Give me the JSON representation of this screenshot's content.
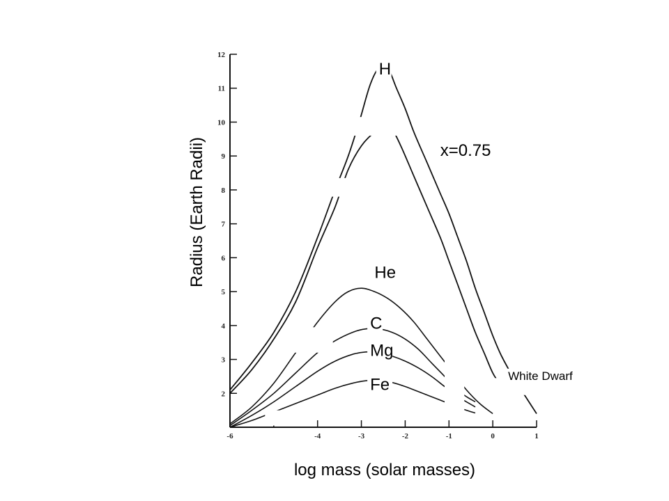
{
  "chart_data": {
    "type": "line",
    "title": "",
    "xlabel": "log mass (solar masses)",
    "ylabel": "Radius (Earth Radii)",
    "xlim": [
      -6,
      1
    ],
    "ylim": [
      1,
      12
    ],
    "xticks": [
      -6,
      -5,
      -4,
      -3,
      -2,
      -1,
      0,
      1
    ],
    "xtick_labels": [
      "-6",
      "",
      "-4",
      "-3",
      "-2",
      "-1",
      "0",
      "1"
    ],
    "yticks": [
      2,
      3,
      4,
      5,
      6,
      7,
      8,
      9,
      10,
      11,
      12
    ],
    "grid": false,
    "series": [
      {
        "name": "H",
        "label_at": [
          -2.6,
          11.4
        ],
        "x": [
          -6.0,
          -5.5,
          -5.0,
          -4.5,
          -4.0,
          -3.6,
          -3.3,
          -3.05,
          -2.8,
          -2.6,
          -2.4,
          -2.2,
          -2.0,
          -1.8,
          -1.5,
          -1.2,
          -1.0,
          -0.8,
          -0.6,
          -0.4,
          -0.2,
          0.0,
          0.2,
          0.5,
          0.8,
          1.0
        ],
        "y": [
          2.1,
          2.9,
          3.8,
          5.0,
          6.6,
          8.0,
          9.0,
          10.0,
          11.1,
          11.6,
          11.6,
          11.0,
          10.4,
          9.7,
          8.8,
          7.9,
          7.3,
          6.6,
          5.9,
          5.1,
          4.4,
          3.7,
          3.1,
          2.4,
          1.8,
          1.4
        ]
      },
      {
        "name": "x=0.75",
        "label_at": [
          -1.2,
          9.0
        ],
        "x": [
          -6.0,
          -5.5,
          -5.0,
          -4.5,
          -4.0,
          -3.6,
          -3.3,
          -3.0,
          -2.7,
          -2.45,
          -2.3,
          -2.1,
          -1.8,
          -1.5,
          -1.2,
          -1.0,
          -0.8,
          -0.6,
          -0.4,
          -0.2,
          0.0,
          0.2
        ],
        "y": [
          2.0,
          2.7,
          3.6,
          4.7,
          6.3,
          7.5,
          8.6,
          9.3,
          9.7,
          9.9,
          9.8,
          9.3,
          8.4,
          7.5,
          6.6,
          5.9,
          5.2,
          4.5,
          3.8,
          3.2,
          2.6,
          2.2
        ]
      },
      {
        "name": "He",
        "label_at": [
          -2.7,
          5.4
        ],
        "x": [
          -6.0,
          -5.5,
          -5.0,
          -4.5,
          -4.0,
          -3.6,
          -3.3,
          -3.0,
          -2.7,
          -2.4,
          -2.1,
          -1.8,
          -1.5,
          -1.2,
          -0.9,
          -0.6,
          -0.3,
          0.0
        ],
        "y": [
          1.1,
          1.6,
          2.3,
          3.2,
          4.1,
          4.7,
          5.0,
          5.1,
          5.0,
          4.8,
          4.5,
          4.1,
          3.6,
          3.1,
          2.6,
          2.1,
          1.7,
          1.4
        ]
      },
      {
        "name": "C",
        "label_at": [
          -2.8,
          3.9
        ],
        "x": [
          -6.0,
          -5.5,
          -5.0,
          -4.5,
          -4.0,
          -3.6,
          -3.2,
          -2.9,
          -2.6,
          -2.3,
          -2.0,
          -1.7,
          -1.4,
          -1.1,
          -0.8,
          -0.6,
          -0.4
        ],
        "y": [
          1.05,
          1.5,
          2.0,
          2.6,
          3.2,
          3.55,
          3.8,
          3.9,
          3.9,
          3.8,
          3.6,
          3.3,
          2.9,
          2.5,
          2.1,
          1.9,
          1.75
        ]
      },
      {
        "name": "Mg",
        "label_at": [
          -2.8,
          3.1
        ],
        "x": [
          -6.0,
          -5.5,
          -5.0,
          -4.5,
          -4.0,
          -3.6,
          -3.2,
          -2.9,
          -2.6,
          -2.3,
          -2.0,
          -1.7,
          -1.4,
          -1.1,
          -0.8,
          -0.6,
          -0.4
        ],
        "y": [
          1.0,
          1.35,
          1.75,
          2.2,
          2.65,
          2.95,
          3.15,
          3.22,
          3.2,
          3.1,
          2.95,
          2.75,
          2.5,
          2.2,
          1.9,
          1.75,
          1.6
        ]
      },
      {
        "name": "Fe",
        "label_at": [
          -2.8,
          2.1
        ],
        "x": [
          -6.0,
          -5.5,
          -5.0,
          -4.5,
          -4.0,
          -3.6,
          -3.2,
          -2.9,
          -2.6,
          -2.3,
          -2.0,
          -1.7,
          -1.4,
          -1.1,
          -0.8,
          -0.6,
          -0.4
        ],
        "y": [
          1.0,
          1.2,
          1.45,
          1.7,
          1.95,
          2.15,
          2.3,
          2.37,
          2.38,
          2.32,
          2.2,
          2.05,
          1.9,
          1.75,
          1.6,
          1.5,
          1.42
        ]
      }
    ],
    "annotations": [
      {
        "text": "White Dwarf",
        "at": [
          0.35,
          2.4
        ]
      }
    ]
  }
}
